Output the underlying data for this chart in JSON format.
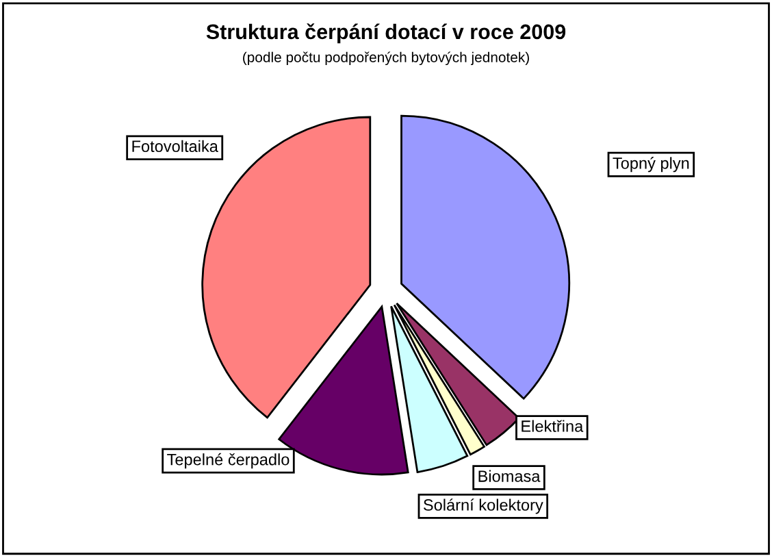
{
  "chart_data": {
    "type": "pie",
    "title": "Struktura čerpání dotací v roce 2009",
    "subtitle": "(podle počtu podpořených bytových jednotek)",
    "categories": [
      "Topný plyn",
      "Elektřina",
      "Biomasa",
      "Solární kolektory",
      "Tepelné čerpadlo",
      "Fotovoltaika"
    ],
    "values": [
      37,
      4,
      1.5,
      5,
      13,
      39.5
    ],
    "colors": [
      "#9999ff",
      "#993366",
      "#ffffcc",
      "#ccffff",
      "#660066",
      "#ff8080"
    ]
  }
}
